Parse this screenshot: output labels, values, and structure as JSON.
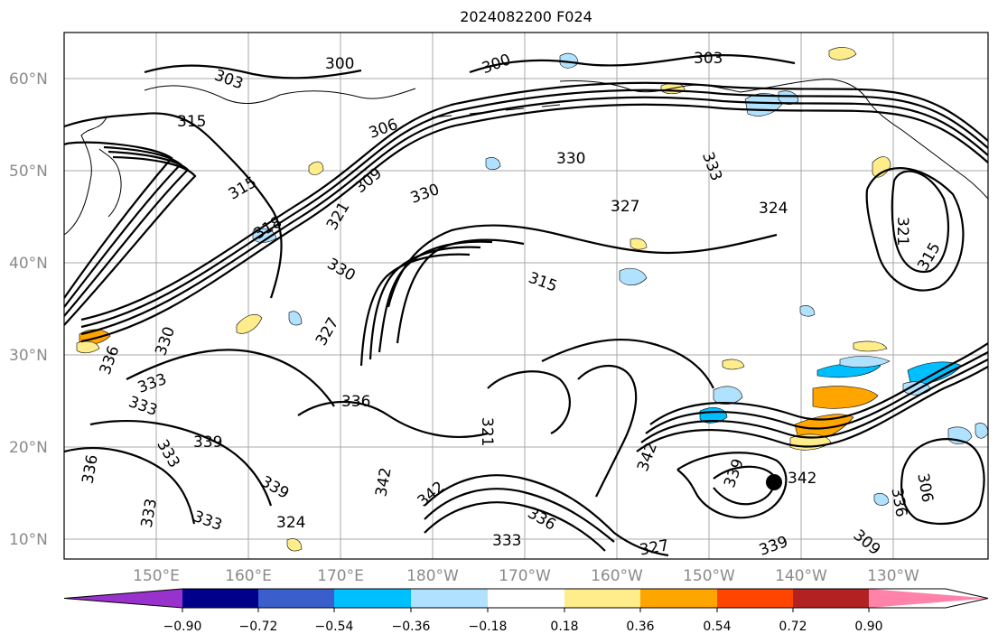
{
  "title": "2024082200 F024",
  "axes": {
    "lat_labels": [
      "60°N",
      "50°N",
      "40°N",
      "30°N",
      "20°N",
      "10°N"
    ],
    "lon_labels": [
      "150°E",
      "160°E",
      "170°E",
      "180°W",
      "170°W",
      "160°W",
      "150°W",
      "140°W",
      "130°W"
    ]
  },
  "colorbar": {
    "ticks": [
      "−0.90",
      "−0.72",
      "−0.54",
      "−0.36",
      "−0.18",
      "0.18",
      "0.36",
      "0.54",
      "0.72",
      "0.90"
    ],
    "colors": [
      "#9932cc",
      "#00008b",
      "#3a5fcd",
      "#00bfff",
      "#b0e2ff",
      "#ffffff",
      "#ffec8b",
      "#ffa500",
      "#ff4500",
      "#b22222",
      "#ff82ab"
    ]
  },
  "contour_labels": [
    "300",
    "300",
    "303",
    "303",
    "306",
    "309",
    "315",
    "315",
    "318",
    "321",
    "327",
    "330",
    "330",
    "330",
    "333",
    "324",
    "327",
    "315",
    "330",
    "336",
    "333",
    "333",
    "336",
    "339",
    "333",
    "336",
    "339",
    "333",
    "333",
    "324",
    "321",
    "342",
    "342",
    "336",
    "333",
    "327",
    "339",
    "342",
    "339",
    "342",
    "336",
    "306",
    "309",
    "315",
    "321"
  ],
  "marker": "tropical-cyclone-center"
}
